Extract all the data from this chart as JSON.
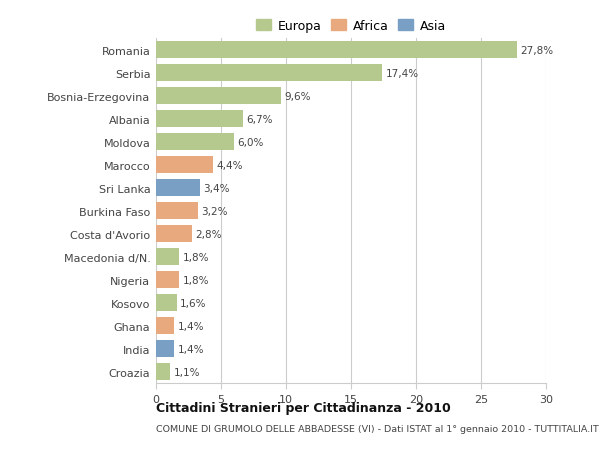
{
  "categories": [
    "Romania",
    "Serbia",
    "Bosnia-Erzegovina",
    "Albania",
    "Moldova",
    "Marocco",
    "Sri Lanka",
    "Burkina Faso",
    "Costa d'Avorio",
    "Macedonia d/N.",
    "Nigeria",
    "Kosovo",
    "Ghana",
    "India",
    "Croazia"
  ],
  "values": [
    27.8,
    17.4,
    9.6,
    6.7,
    6.0,
    4.4,
    3.4,
    3.2,
    2.8,
    1.8,
    1.8,
    1.6,
    1.4,
    1.4,
    1.1
  ],
  "labels": [
    "27,8%",
    "17,4%",
    "9,6%",
    "6,7%",
    "6,0%",
    "4,4%",
    "3,4%",
    "3,2%",
    "2,8%",
    "1,8%",
    "1,8%",
    "1,6%",
    "1,4%",
    "1,4%",
    "1,1%"
  ],
  "colors": [
    "#b5c98e",
    "#b5c98e",
    "#b5c98e",
    "#b5c98e",
    "#b5c98e",
    "#e8a97e",
    "#7a9fc4",
    "#e8a97e",
    "#e8a97e",
    "#b5c98e",
    "#e8a97e",
    "#b5c98e",
    "#e8a97e",
    "#7a9fc4",
    "#b5c98e"
  ],
  "legend": [
    {
      "label": "Europa",
      "color": "#b5c98e"
    },
    {
      "label": "Africa",
      "color": "#e8a97e"
    },
    {
      "label": "Asia",
      "color": "#7a9fc4"
    }
  ],
  "xlim": [
    0,
    30
  ],
  "xticks": [
    0,
    5,
    10,
    15,
    20,
    25,
    30
  ],
  "title": "Cittadini Stranieri per Cittadinanza - 2010",
  "subtitle": "COMUNE DI GRUMOLO DELLE ABBADESSE (VI) - Dati ISTAT al 1° gennaio 2010 - TUTTITALIA.IT",
  "background_color": "#ffffff",
  "grid_color": "#cccccc"
}
